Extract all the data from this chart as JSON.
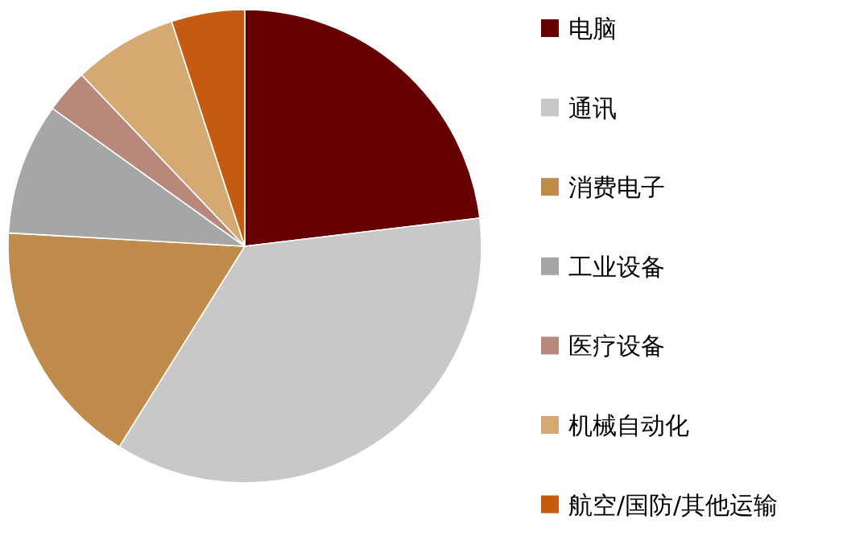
{
  "chart_data": {
    "type": "pie",
    "categories": [
      "电脑",
      "通讯",
      "消费电子",
      "工业设备",
      "医疗设备",
      "机械自动化",
      "航空/国防/其他运输"
    ],
    "values": [
      23.1,
      35.8,
      17.0,
      9.0,
      3.0,
      7.1,
      5.0
    ],
    "colors": [
      "#660000",
      "#c8c8c8",
      "#bf8c4b",
      "#a6a6a6",
      "#b8887a",
      "#d4aa72",
      "#c55a11"
    ],
    "legend": "right"
  }
}
